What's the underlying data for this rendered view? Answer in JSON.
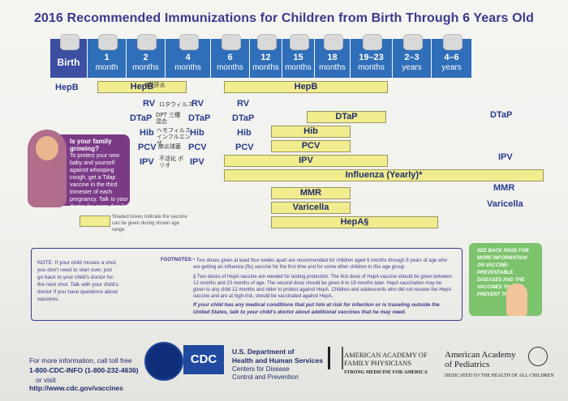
{
  "title": "2016 Recommended Immunizations for Children from Birth Through 6 Years Old",
  "ages": [
    {
      "n": "Birth",
      "u": ""
    },
    {
      "n": "1",
      "u": "month"
    },
    {
      "n": "2",
      "u": "months"
    },
    {
      "n": "4",
      "u": "months"
    },
    {
      "n": "6",
      "u": "months"
    },
    {
      "n": "12",
      "u": "months"
    },
    {
      "n": "15",
      "u": "months"
    },
    {
      "n": "18",
      "u": "months"
    },
    {
      "n": "19–23",
      "u": "months"
    },
    {
      "n": "2–3",
      "u": "years"
    },
    {
      "n": "4–6",
      "u": "years"
    }
  ],
  "vaccines": {
    "hepb": "HepB",
    "rv": "RV",
    "dtap": "DTaP",
    "hib": "Hib",
    "pcv": "PCV",
    "ipv": "IPV",
    "influenza": "Influenza (Yearly)*",
    "mmr": "MMR",
    "varicella": "Varicella",
    "hepa": "HepA§"
  },
  "handwriting": {
    "hepb": "B型肝炎",
    "rv": "ロタウィルス",
    "dtap": "DPT 三種混合",
    "hib": "ヘモフィルス インフルエンザ",
    "pcv": "肺炎球菌",
    "ipv": "不活化 ポリオ"
  },
  "pregnancy": {
    "heading": "Is your family growing?",
    "body": "To protect your new baby and yourself against whooping cough, get a Tdap vaccine in the third trimester of each pregnancy. Talk to your doctor for more details."
  },
  "legend": "Shaded boxes indicate the vaccine can be given during shown age range.",
  "note": "NOTE: If your child misses a shot, you don't need to start over, just go back to your child's doctor for the next shot. Talk with your child's doctor if you have questions about vaccines.",
  "footnotes_label": "FOOTNOTES:",
  "footnotes": [
    "* Two doses given at least four weeks apart are recommended for children aged 6 months through 8 years of age who are getting an influenza (flu) vaccine for the first time and for some other children in this age group.",
    "§ Two doses of HepA vaccine are needed for lasting protection. The first dose of HepA vaccine should be given between 12 months and 23 months of age. The second dose should be given 6 to 18 months later. HepA vaccination may be given to any child 12 months and older to protect against HepA. Children and adolescents who did not receive the HepA vaccine and are at high-risk, should be vaccinated against HepA."
  ],
  "risk_note": "If your child has any medical conditions that put him at risk for infection or is traveling outside the United States, talk to your child's doctor about additional vaccines that he may need.",
  "green_box": "SEE BACK PAGE FOR MORE INFORMATION ON VACCINE-PREVENTABLE DISEASES AND THE VACCINES THAT PREVENT THEM.",
  "contact": {
    "line1": "For more information, call toll free",
    "phone": "1-800-CDC-INFO (1-800-232-4636)",
    "or": "or visit",
    "url": "http://www.cdc.gov/vaccines"
  },
  "cdc": "CDC",
  "dept": {
    "l1": "U.S. Department of",
    "l2": "Health and Human Services",
    "l3": "Centers for Disease",
    "l4": "Control and Prevention"
  },
  "aafp": {
    "l1": "AMERICAN ACADEMY OF",
    "l2": "FAMILY PHYSICIANS",
    "l3": "STRONG MEDICINE FOR AMERICA"
  },
  "aap": {
    "l1": "American Academy",
    "l2": "of Pediatrics",
    "l3": "DEDICATED TO THE HEALTH OF ALL CHILDREN"
  }
}
